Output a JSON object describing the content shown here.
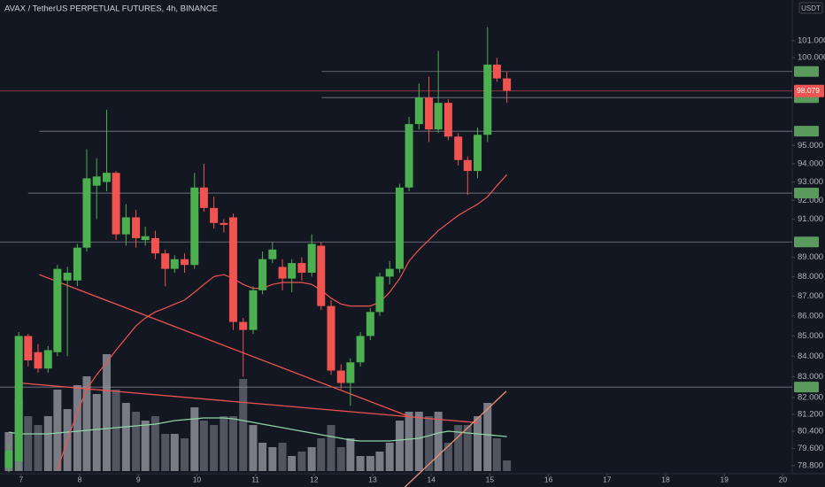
{
  "chart_data": {
    "type": "candlestick",
    "title": "AVAX / TetherUS PERPETUAL FUTURES, 4h, BINANCE",
    "currency": "USDT",
    "log_scale": true,
    "grid": false,
    "up_color": "#4caf50",
    "down_color": "#f05350",
    "x": [
      6.79,
      6.96,
      7.12,
      7.29,
      7.46,
      7.62,
      7.79,
      7.96,
      8.12,
      8.29,
      8.46,
      8.62,
      8.79,
      8.96,
      9.12,
      9.29,
      9.46,
      9.62,
      9.79,
      9.96,
      10.12,
      10.29,
      10.46,
      10.62,
      10.79,
      10.96,
      11.12,
      11.29,
      11.46,
      11.62,
      11.79,
      11.96,
      12.12,
      12.29,
      12.46,
      12.62,
      12.79,
      12.96,
      13.12,
      13.29,
      13.46,
      13.62,
      13.79,
      13.96,
      14.12,
      14.29,
      14.46,
      14.62,
      14.79,
      14.96,
      15.12,
      15.29
    ],
    "open": [
      78.7,
      79.0,
      85.0,
      84.2,
      83.4,
      84.2,
      87.8,
      87.8,
      89.5,
      92.8,
      93.0,
      93.5,
      90.2,
      91.1,
      89.9,
      90.0,
      89.2,
      88.4,
      88.9,
      88.6,
      92.7,
      91.6,
      90.8,
      91.1,
      85.7,
      85.3,
      87.3,
      88.9,
      88.5,
      87.9,
      88.7,
      88.2,
      89.6,
      86.5,
      83.3,
      82.7,
      83.7,
      85.0,
      86.2,
      88.0,
      88.4,
      92.7,
      96.2,
      97.7,
      95.9,
      97.4,
      95.5,
      94.2,
      93.6,
      95.6,
      99.6,
      98.8
    ],
    "high": [
      79.8,
      85.2,
      85.1,
      84.6,
      84.5,
      88.6,
      88.5,
      89.7,
      94.8,
      94.3,
      97.0,
      93.6,
      91.8,
      91.5,
      90.6,
      90.4,
      89.4,
      89.1,
      89.2,
      93.5,
      94.0,
      92.2,
      91.0,
      91.3,
      85.9,
      87.5,
      89.3,
      89.8,
      88.9,
      88.9,
      89.0,
      90.2,
      89.8,
      86.8,
      83.6,
      83.9,
      85.2,
      86.4,
      88.2,
      88.8,
      92.9,
      96.6,
      98.5,
      98.9,
      100.4,
      97.6,
      95.7,
      94.4,
      96.0,
      101.8,
      100.0,
      99.2
    ],
    "low": [
      78.5,
      78.6,
      83.5,
      83.2,
      83.2,
      84.0,
      84.0,
      87.5,
      89.3,
      91.0,
      92.5,
      89.9,
      89.6,
      89.5,
      89.6,
      88.9,
      87.5,
      88.2,
      88.2,
      88.4,
      91.4,
      90.5,
      90.3,
      85.3,
      83.0,
      85.1,
      87.1,
      88.7,
      87.3,
      87.2,
      87.8,
      88.0,
      86.3,
      83.1,
      82.4,
      81.6,
      83.5,
      84.8,
      86.0,
      87.6,
      88.2,
      92.5,
      95.9,
      95.2,
      95.7,
      95.3,
      93.9,
      92.3,
      93.2,
      95.2,
      98.6,
      97.4
    ],
    "close": [
      79.5,
      85.0,
      83.8,
      83.4,
      84.3,
      88.4,
      88.2,
      89.5,
      93.2,
      93.3,
      93.5,
      90.2,
      91.1,
      90.0,
      90.1,
      89.2,
      88.4,
      88.9,
      88.6,
      92.7,
      91.6,
      90.8,
      90.7,
      85.7,
      85.3,
      87.3,
      88.9,
      89.4,
      87.9,
      88.7,
      88.2,
      89.7,
      86.5,
      83.3,
      82.7,
      83.7,
      85.0,
      86.2,
      88.0,
      88.4,
      92.7,
      96.2,
      97.7,
      95.9,
      97.4,
      95.5,
      94.2,
      93.6,
      95.6,
      99.6,
      98.8,
      98.1
    ],
    "ma": [
      null,
      null,
      null,
      null,
      null,
      78.6,
      80.0,
      81.3,
      82.4,
      83.1,
      83.7,
      84.3,
      84.9,
      85.5,
      85.9,
      86.2,
      86.4,
      86.6,
      86.8,
      87.2,
      87.6,
      88.0,
      88.1,
      87.9,
      87.6,
      87.4,
      87.4,
      87.6,
      87.7,
      87.7,
      87.7,
      87.6,
      87.3,
      86.9,
      86.6,
      86.5,
      86.5,
      86.5,
      86.7,
      87.2,
      87.9,
      88.8,
      89.4,
      89.9,
      90.4,
      90.8,
      91.2,
      91.5,
      91.8,
      92.2,
      92.8,
      93.4
    ],
    "ma_color": "#f05350",
    "volume": [
      44,
      82,
      62,
      52,
      62,
      92,
      70,
      97,
      107,
      87,
      132,
      92,
      77,
      67,
      57,
      62,
      42,
      42,
      37,
      72,
      57,
      52,
      62,
      62,
      104,
      52,
      32,
      27,
      32,
      17,
      22,
      27,
      37,
      52,
      27,
      37,
      17,
      17,
      22,
      32,
      57,
      67,
      67,
      62,
      67,
      32,
      52,
      52,
      62,
      77,
      37,
      12
    ],
    "volume_ma": [
      44,
      42,
      42,
      42,
      42,
      43,
      44,
      45,
      46,
      47,
      48,
      49,
      50,
      51,
      52,
      53,
      55,
      57,
      58,
      59,
      60,
      60,
      60,
      59,
      57,
      55,
      53,
      51,
      49,
      47,
      45,
      43,
      41,
      39,
      37,
      35,
      34,
      34,
      34,
      34,
      35,
      36,
      37,
      40,
      43,
      45,
      44,
      43,
      42,
      41,
      40,
      39
    ],
    "volume_ma_color": "#8fd5a6",
    "volume_up_color": "#8c8e96",
    "volume_down_color": "#5d606b",
    "volume_lim": [
      0,
      200
    ],
    "levels": [
      {
        "value": 99.2,
        "from": 12.13
      },
      {
        "value": 97.7,
        "from": 12.13
      },
      {
        "value": 95.8,
        "from": 7.31
      },
      {
        "value": 92.4,
        "from": 7.12
      },
      {
        "value": 89.8,
        "from": 6.64
      },
      {
        "value": 82.5,
        "from": 6.64
      }
    ],
    "level_tag_color": "#5b9a5d",
    "last_price": 98.079,
    "trendlines": [
      {
        "color": "#f05350",
        "points": [
          [
            7.31,
            88.1
          ],
          [
            13.62,
            81.1
          ]
        ]
      },
      {
        "color": "#f05350",
        "points": [
          [
            6.97,
            82.7
          ],
          [
            14.8,
            80.8
          ]
        ]
      },
      {
        "color": "#f09070",
        "points": [
          [
            13.54,
            77.8
          ],
          [
            15.28,
            82.3
          ]
        ]
      }
    ],
    "xlim": [
      6.64,
      20.16
    ],
    "ylim": [
      78.43,
      103.43
    ],
    "xticks": [
      7,
      8,
      9,
      10,
      11,
      12,
      13,
      14,
      15,
      16,
      17,
      18,
      19,
      20
    ],
    "yticks": [
      {
        "value": 101,
        "label": "101.000"
      },
      {
        "value": 100,
        "label": "100.000"
      },
      {
        "value": 95,
        "label": "95.000"
      },
      {
        "value": 94,
        "label": "94.000"
      },
      {
        "value": 93,
        "label": "93.000"
      },
      {
        "value": 92,
        "label": "92.000"
      },
      {
        "value": 91,
        "label": "91.000"
      },
      {
        "value": 89,
        "label": "89.000"
      },
      {
        "value": 88,
        "label": "88.000"
      },
      {
        "value": 87,
        "label": "87.000"
      },
      {
        "value": 86,
        "label": "86.000"
      },
      {
        "value": 85,
        "label": "85.000"
      },
      {
        "value": 84,
        "label": "84.000"
      },
      {
        "value": 83,
        "label": "83.000"
      },
      {
        "value": 82,
        "label": "82.000"
      },
      {
        "value": 81.2,
        "label": "81.200"
      },
      {
        "value": 80.4,
        "label": "80.400"
      },
      {
        "value": 79.6,
        "label": "79.600"
      },
      {
        "value": 78.8,
        "label": "78.800"
      }
    ]
  }
}
